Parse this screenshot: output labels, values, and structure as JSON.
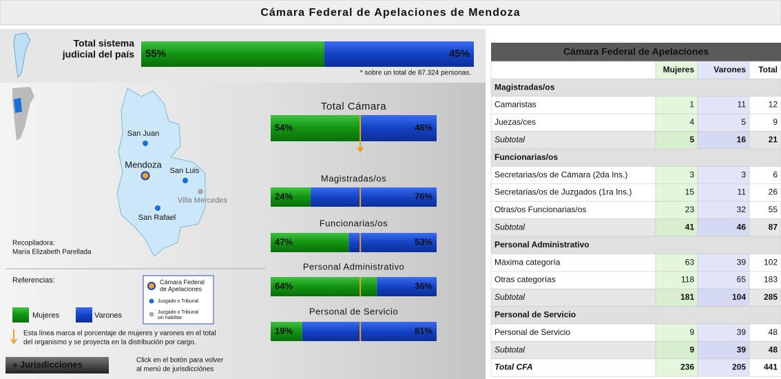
{
  "title": "Cámara Federal de Apelaciones de Mendoza",
  "national": {
    "label_lines": [
      "Total sistema",
      "judicial del país"
    ],
    "values": [
      55,
      45
    ],
    "value_labels": [
      "55%",
      "45%"
    ],
    "note": "* sobre un total de 87.324 personas."
  },
  "map": {
    "places": [
      "San Juan",
      "Mendoza",
      "San Luis",
      "Villa Mercedes",
      "San Rafael"
    ],
    "compiler": [
      "Recopiladora:",
      "María Elizabeth Parellada"
    ]
  },
  "legend": {
    "title": "Referencias:",
    "women": "Mujeres",
    "men": "Varones",
    "camara": [
      "Cámara Federal",
      "de Apelaciones"
    ],
    "court": "Juzgado o Tribunal",
    "court_off": [
      "Juzgado o Tribunal",
      "sin habilitar"
    ],
    "line_note": [
      "Esta línea marca el porcentaje de mujeres y varones en el total",
      "del organismo y se proyecta en la distribución por cargo."
    ]
  },
  "button": {
    "label": "» Jurisdicciones",
    "hint": [
      "Click en el botón para volver",
      "al menú de jurisdicciónes"
    ]
  },
  "bars": [
    {
      "title": "Total Cámara",
      "values": [
        54,
        46
      ],
      "value_labels": [
        "54%",
        "46%"
      ]
    },
    {
      "title": "Magistradas/os",
      "values": [
        24,
        76
      ],
      "value_labels": [
        "24%",
        "76%"
      ]
    },
    {
      "title": "Funcionarias/os",
      "values": [
        47,
        53
      ],
      "value_labels": [
        "47%",
        "53%"
      ]
    },
    {
      "title": "Personal Administrativo",
      "values": [
        64,
        36
      ],
      "value_labels": [
        "64%",
        "36%"
      ]
    },
    {
      "title": "Personal de Servicio",
      "values": [
        19,
        81
      ],
      "value_labels": [
        "19%",
        "81%"
      ]
    }
  ],
  "table": {
    "title": "Cámara Federal de Apelaciones",
    "columns": [
      "Mujeres",
      "Varones",
      "Total"
    ],
    "sections": [
      {
        "name": "Magistradas/os",
        "rows": [
          {
            "label": "Camaristas",
            "values": [
              1,
              11,
              12
            ]
          },
          {
            "label": "Juezas/ces",
            "values": [
              4,
              5,
              9
            ]
          }
        ],
        "subtotal": {
          "label": "Subtotal",
          "values": [
            5,
            16,
            21
          ]
        }
      },
      {
        "name": "Funcionarias/os",
        "rows": [
          {
            "label": "Secretarias/os de Cámara (2da Ins.)",
            "values": [
              3,
              3,
              6
            ]
          },
          {
            "label": "Secretarias/os de Juzgados (1ra Ins.)",
            "values": [
              15,
              11,
              26
            ]
          },
          {
            "label": "Otras/os Funcionarias/os",
            "values": [
              23,
              32,
              55
            ]
          }
        ],
        "subtotal": {
          "label": "Subtotal",
          "values": [
            41,
            46,
            87
          ]
        }
      },
      {
        "name": "Personal Administrativo",
        "rows": [
          {
            "label": "Máxima categoría",
            "values": [
              63,
              39,
              102
            ]
          },
          {
            "label": "Otras categorías",
            "values": [
              118,
              65,
              183
            ]
          }
        ],
        "subtotal": {
          "label": "Subtotal",
          "values": [
            181,
            104,
            285
          ]
        }
      },
      {
        "name": "Personal de Servicio",
        "rows": [
          {
            "label": "Personal de Servicio",
            "values": [
              9,
              39,
              48
            ]
          }
        ],
        "subtotal": {
          "label": "Subtotal",
          "values": [
            9,
            39,
            48
          ]
        }
      }
    ],
    "total": {
      "label": "Total CFA",
      "values": [
        236,
        205,
        441
      ]
    }
  }
}
